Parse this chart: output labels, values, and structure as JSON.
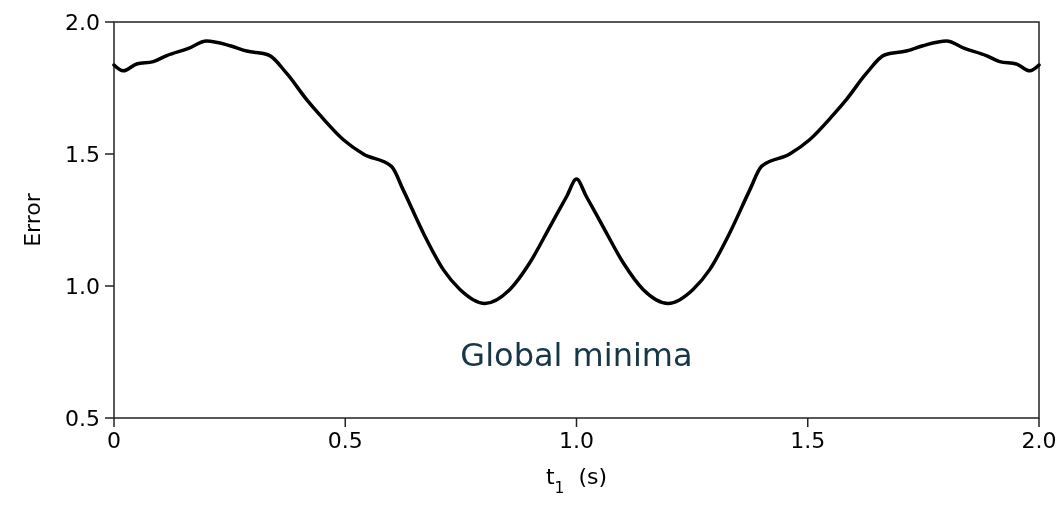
{
  "chart_data": {
    "type": "line",
    "xlabel": "t$_{1}$  (s)",
    "ylabel": "Error",
    "xlim": [
      0,
      2
    ],
    "ylim": [
      0.5,
      2
    ],
    "xticks": [
      0,
      0.5,
      {
        "value": 1,
        "label": "1.0"
      },
      1.5,
      {
        "value": 2,
        "label": "2.0"
      }
    ],
    "yticks": [
      0.5,
      {
        "value": 1,
        "label": "1.0"
      },
      1.5,
      {
        "value": 2,
        "label": "2.0"
      }
    ],
    "grid": false,
    "marker": "none",
    "line_style": "solid",
    "annotations": [
      "Global minima"
    ],
    "series": [
      {
        "color": "#000000",
        "x": [
          0,
          0.02,
          0.049,
          0.085,
          0.114,
          0.161,
          0.2,
          0.251,
          0.287,
          0.334,
          0.373,
          0.417,
          0.445,
          0.496,
          0.539,
          0.6,
          0.625,
          0.669,
          0.712,
          0.748,
          0.802,
          0.856,
          0.899,
          0.943,
          0.979,
          1.0,
          1.021,
          1.057,
          1.101,
          1.144,
          1.198,
          1.252,
          1.288,
          1.331,
          1.375,
          1.4,
          1.461,
          1.504,
          1.555,
          1.583,
          1.627,
          1.666,
          1.713,
          1.749,
          1.8,
          1.839,
          1.886,
          1.915,
          1.951,
          1.98,
          2.0
        ],
        "values": [
          1.837,
          1.815,
          1.841,
          1.85,
          1.873,
          1.9,
          1.928,
          1.91,
          1.89,
          1.875,
          1.806,
          1.705,
          1.648,
          1.554,
          1.5,
          1.453,
          1.365,
          1.2,
          1.062,
          0.987,
          0.934,
          0.987,
          1.088,
          1.226,
          1.34,
          1.405,
          1.34,
          1.226,
          1.088,
          0.987,
          0.934,
          0.987,
          1.062,
          1.2,
          1.365,
          1.453,
          1.5,
          1.554,
          1.648,
          1.705,
          1.806,
          1.875,
          1.89,
          1.91,
          1.928,
          1.9,
          1.873,
          1.85,
          1.841,
          1.815,
          1.837
        ]
      }
    ]
  }
}
